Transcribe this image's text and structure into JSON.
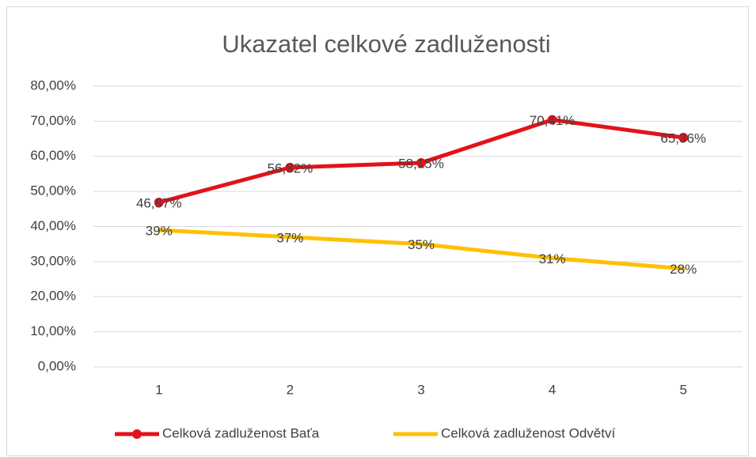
{
  "chart_data": {
    "type": "line",
    "title": "Ukazatel celkové zadluženosti",
    "categories": [
      "1",
      "2",
      "3",
      "4",
      "5"
    ],
    "series": [
      {
        "name": "Celková zadluženost Baťa",
        "color": "#e3121b",
        "markers": true,
        "values": [
          46.87,
          56.82,
          58.15,
          70.41,
          65.36
        ],
        "value_labels": [
          "46,87%",
          "56,82%",
          "58,15%",
          "70,41%",
          "65,36%"
        ]
      },
      {
        "name": "Celková zadluženost Odvětví",
        "color": "#ffc000",
        "markers": false,
        "values": [
          39,
          37,
          35,
          31,
          28
        ],
        "value_labels": [
          "39%",
          "37%",
          "35%",
          "31%",
          "28%"
        ]
      }
    ],
    "ylim": [
      0,
      80
    ],
    "yticks": [
      {
        "value": 0,
        "label": "0,00%"
      },
      {
        "value": 10,
        "label": "10,00%"
      },
      {
        "value": 20,
        "label": "20,00%"
      },
      {
        "value": 30,
        "label": "30,00%"
      },
      {
        "value": 40,
        "label": "40,00%"
      },
      {
        "value": 50,
        "label": "50,00%"
      },
      {
        "value": 60,
        "label": "60,00%"
      },
      {
        "value": 70,
        "label": "70,00%"
      },
      {
        "value": 80,
        "label": "80,00%"
      }
    ],
    "grid": true,
    "legend": "bottom"
  }
}
